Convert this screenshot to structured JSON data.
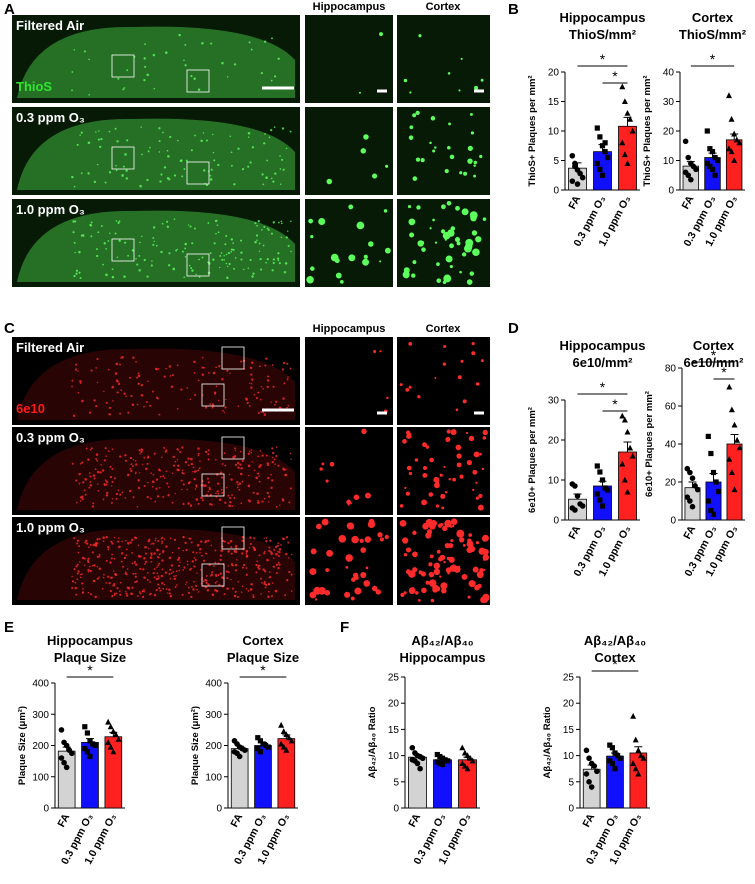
{
  "panel_letters": [
    "A",
    "B",
    "C",
    "D",
    "E",
    "F"
  ],
  "image_panels": [
    {
      "stain": "ThioS",
      "stain_color": "#2ee62e",
      "rows": [
        "Filtered Air",
        "0.3 ppm O₃",
        "1.0 ppm O₃"
      ],
      "columns": [
        "Hippocampus",
        "Cortex"
      ]
    },
    {
      "stain": "6e10",
      "stain_color": "#ff1a1a",
      "rows": [
        "Filtered Air",
        "0.3 ppm O₃",
        "1.0 ppm O₃"
      ],
      "columns": [
        "Hippocampus",
        "Cortex"
      ]
    }
  ],
  "chart_data": [
    {
      "type": "bar",
      "title": [
        "Hippocampus",
        "ThioS/mm²"
      ],
      "ylabel": "ThioS+ Plaques per mm²",
      "categories": [
        "FA",
        "0.3 ppm O₃",
        "1.0 ppm O₃"
      ],
      "colors": [
        "#d3d3d3",
        "#1010ff",
        "#ff2020"
      ],
      "markers": [
        "circle",
        "square",
        "triangle"
      ],
      "values": [
        3.7,
        6.5,
        10.8
      ],
      "errors": [
        0.9,
        1.2,
        1.5
      ],
      "points": [
        [
          5.8,
          4.5,
          3.4,
          2.8,
          2.1,
          1.5,
          4.0,
          1.0
        ],
        [
          10.5,
          9.0,
          7.5,
          6.5,
          5.5,
          4.5,
          3.5,
          2.5,
          8.0
        ],
        [
          17.5,
          15,
          13,
          12,
          10,
          8,
          6,
          4.5
        ]
      ],
      "ylim": [
        0,
        20
      ],
      "yticks": [
        0,
        5,
        10,
        15,
        20
      ],
      "significance": [
        {
          "text": "*",
          "pair": [
            0,
            2
          ]
        },
        {
          "text": "*",
          "pair": [
            1,
            2
          ]
        }
      ]
    },
    {
      "type": "bar",
      "title": [
        "Cortex",
        "ThioS/mm²"
      ],
      "ylabel": "ThioS+ Plaques per mm²",
      "categories": [
        "FA",
        "0.3 ppm O₃",
        "1.0 ppm O₃"
      ],
      "colors": [
        "#d3d3d3",
        "#1010ff",
        "#ff2020"
      ],
      "markers": [
        "circle",
        "square",
        "triangle"
      ],
      "values": [
        8.1,
        11,
        17
      ],
      "errors": [
        1.5,
        1.5,
        2
      ],
      "points": [
        [
          16.5,
          11,
          9,
          8,
          7,
          6,
          5,
          3.5
        ],
        [
          20,
          14,
          13,
          11,
          10,
          9,
          8,
          7,
          5
        ],
        [
          32,
          24,
          19,
          17,
          16,
          14,
          13,
          10
        ]
      ],
      "ylim": [
        0,
        40
      ],
      "yticks": [
        0,
        10,
        20,
        30,
        40
      ],
      "significance": [
        {
          "text": "*",
          "pair": [
            0,
            2
          ]
        }
      ]
    },
    {
      "type": "bar",
      "title": [
        "Hippocampus",
        "6e10/mm²"
      ],
      "ylabel": "6e10+ Plaques per mm²",
      "categories": [
        "FA",
        "0.3 ppm O₃",
        "1.0 ppm O₃"
      ],
      "colors": [
        "#d3d3d3",
        "#1010ff",
        "#ff2020"
      ],
      "markers": [
        "circle",
        "square",
        "triangle"
      ],
      "values": [
        5.2,
        8.5,
        17
      ],
      "errors": [
        1.3,
        1.2,
        2.5
      ],
      "points": [
        [
          9,
          8.5,
          6,
          4,
          3.5,
          3,
          2.5
        ],
        [
          13.5,
          12,
          10,
          8,
          7.5,
          6.5,
          5,
          3.5
        ],
        [
          26,
          25,
          22,
          18,
          16,
          14,
          10,
          7
        ]
      ],
      "ylim": [
        0,
        30
      ],
      "yticks": [
        0,
        10,
        20,
        30
      ],
      "significance": [
        {
          "text": "*",
          "pair": [
            0,
            2
          ]
        },
        {
          "text": "*",
          "pair": [
            1,
            2
          ]
        }
      ]
    },
    {
      "type": "bar",
      "title": [
        "Cortex",
        "6e10/mm²"
      ],
      "ylabel": "6e10+ Plaques per mm²",
      "categories": [
        "FA",
        "0.3 ppm O₃",
        "1.0 ppm O₃"
      ],
      "colors": [
        "#d3d3d3",
        "#1010ff",
        "#ff2020"
      ],
      "markers": [
        "circle",
        "square",
        "triangle"
      ],
      "values": [
        17,
        20,
        40
      ],
      "errors": [
        3,
        4.5,
        5
      ],
      "points": [
        [
          27,
          25,
          22,
          18,
          16,
          12,
          10,
          7
        ],
        [
          44,
          35,
          25,
          20,
          15,
          10,
          5,
          3
        ],
        [
          70,
          58,
          50,
          42,
          38,
          32,
          25,
          16
        ]
      ],
      "ylim": [
        0,
        80
      ],
      "yticks": [
        0,
        20,
        40,
        60,
        80
      ],
      "significance": [
        {
          "text": "*",
          "pair": [
            0,
            2
          ]
        },
        {
          "text": "*",
          "pair": [
            1,
            2
          ]
        }
      ]
    },
    {
      "type": "bar",
      "title": [
        "Hippocampus",
        "Plaque Size"
      ],
      "ylabel": "Plaque Size (μm²)",
      "categories": [
        "FA",
        "0.3 ppm O₃",
        "1.0 ppm O₃"
      ],
      "colors": [
        "#d3d3d3",
        "#1010ff",
        "#ff2020"
      ],
      "markers": [
        "circle",
        "square",
        "triangle"
      ],
      "values": [
        182,
        210,
        228
      ],
      "errors": [
        13,
        12,
        14
      ],
      "points": [
        [
          250,
          210,
          200,
          185,
          175,
          160,
          145,
          130
        ],
        [
          260,
          240,
          215,
          205,
          200,
          190,
          180,
          165
        ],
        [
          275,
          260,
          245,
          235,
          220,
          210,
          195,
          180
        ]
      ],
      "ylim": [
        0,
        400
      ],
      "yticks": [
        0,
        100,
        200,
        300,
        400
      ],
      "significance": [
        {
          "text": "*",
          "pair": [
            0,
            2
          ]
        }
      ]
    },
    {
      "type": "bar",
      "title": [
        "Cortex",
        "Plaque Size"
      ],
      "ylabel": "Plaque Size (μm²)",
      "categories": [
        "FA",
        "0.3 ppm O₃",
        "1.0 ppm O₃"
      ],
      "colors": [
        "#d3d3d3",
        "#1010ff",
        "#ff2020"
      ],
      "markers": [
        "circle",
        "square",
        "triangle"
      ],
      "values": [
        190,
        200,
        222
      ],
      "errors": [
        8,
        10,
        12
      ],
      "points": [
        [
          215,
          205,
          195,
          190,
          185,
          180,
          175,
          165
        ],
        [
          225,
          215,
          205,
          200,
          195,
          190,
          180
        ],
        [
          265,
          245,
          235,
          225,
          215,
          205,
          195,
          185
        ]
      ],
      "ylim": [
        0,
        400
      ],
      "yticks": [
        0,
        100,
        200,
        300,
        400
      ],
      "significance": [
        {
          "text": "*",
          "pair": [
            0,
            2
          ]
        }
      ]
    },
    {
      "type": "bar",
      "title": [
        "Aβ₄₂/Aβ₄₀",
        "Hippocampus"
      ],
      "ylabel": "Aβ₄₂/Aβ₄₀ Ratio",
      "categories": [
        "FA",
        "0.3 ppm O₃",
        "1.0 ppm O₃"
      ],
      "colors": [
        "#d3d3d3",
        "#1010ff",
        "#ff2020"
      ],
      "markers": [
        "circle",
        "square",
        "triangle"
      ],
      "values": [
        9.7,
        9.2,
        9.2
      ],
      "errors": [
        0.4,
        0.3,
        0.5
      ],
      "points": [
        [
          11.5,
          10.5,
          10,
          9.8,
          9.5,
          9.2,
          9,
          8.5,
          7.5
        ],
        [
          10.2,
          9.8,
          9.5,
          9.2,
          9,
          8.8,
          8.5,
          8.3
        ],
        [
          11.5,
          10.5,
          10,
          9.5,
          9,
          8.5,
          8,
          7.5
        ]
      ],
      "ylim": [
        0,
        25
      ],
      "yticks": [
        0,
        5,
        10,
        15,
        20,
        25
      ],
      "significance": []
    },
    {
      "type": "bar",
      "title": [
        "Aβ₄₂/Aβ₄₀",
        "Cortex"
      ],
      "ylabel": "Aβ₄₂/Aβ₄₀ Ratio",
      "categories": [
        "FA",
        "0.3 ppm O₃",
        "1.0 ppm O₃"
      ],
      "colors": [
        "#d3d3d3",
        "#1010ff",
        "#ff2020"
      ],
      "markers": [
        "circle",
        "square",
        "triangle"
      ],
      "values": [
        7.4,
        9.9,
        10.5
      ],
      "errors": [
        0.8,
        0.6,
        1.2
      ],
      "points": [
        [
          11,
          9.5,
          8.5,
          8,
          7,
          6.5,
          5,
          4
        ],
        [
          12,
          11.5,
          10.5,
          10,
          9.5,
          9,
          8.5,
          7.5
        ],
        [
          17.5,
          13,
          11,
          10,
          9.5,
          8.5,
          7.5,
          6.5
        ]
      ],
      "ylim": [
        0,
        25
      ],
      "yticks": [
        0,
        5,
        10,
        15,
        20,
        25
      ],
      "significance": [
        {
          "text": "*",
          "pair": [
            0,
            2
          ]
        }
      ]
    }
  ]
}
